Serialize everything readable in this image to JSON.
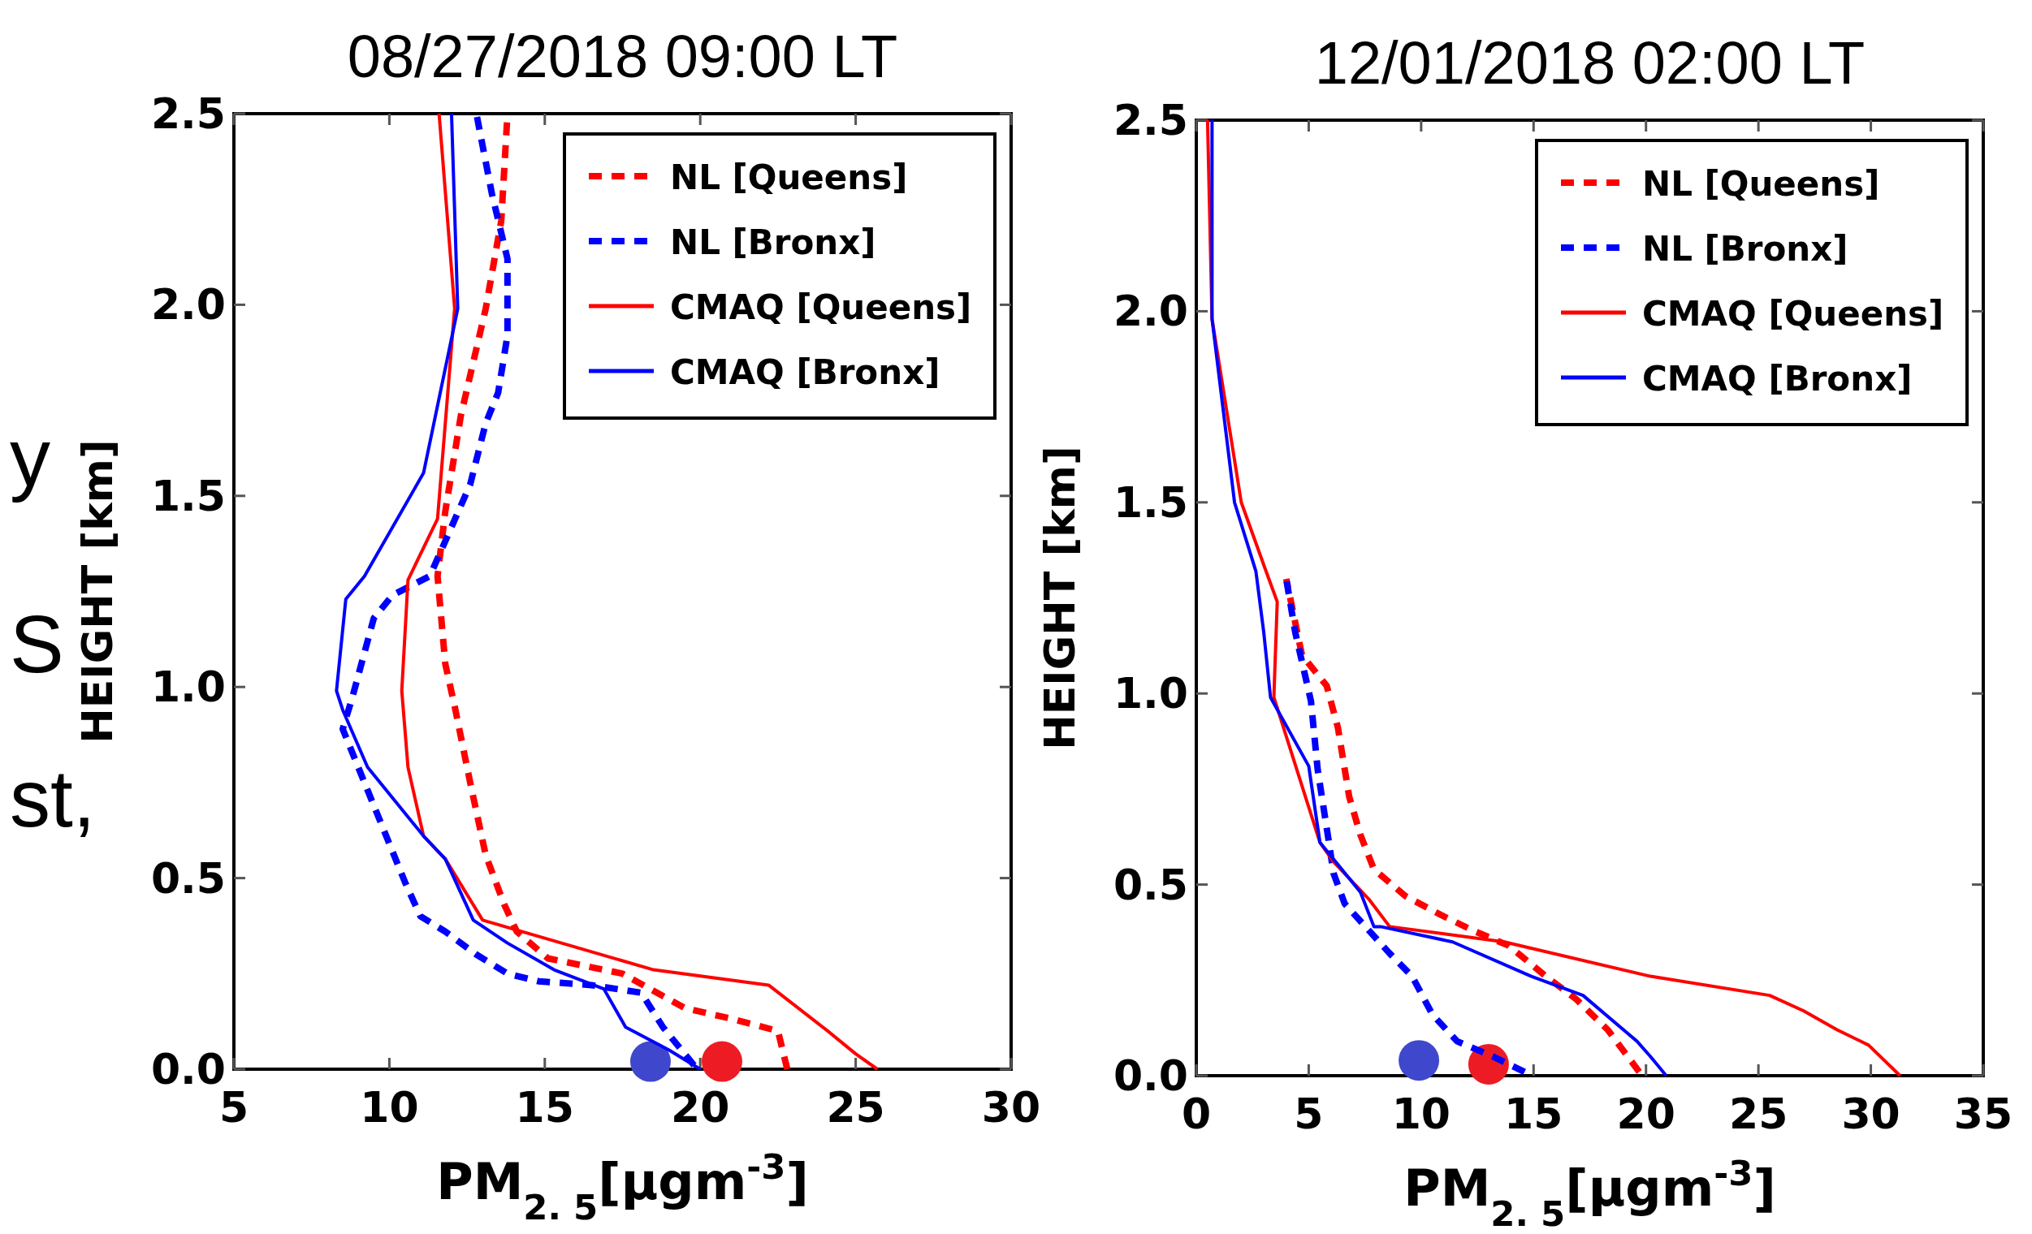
{
  "chart_data": [
    {
      "type": "line",
      "title": "08/27/2018 09:00 LT",
      "xlabel": "PM$_{2. 5}$[μgm$^{-3}$]",
      "ylabel": "HEIGHT [km]",
      "xlim": [
        5,
        30
      ],
      "xticks": [
        5,
        10,
        15,
        20,
        25,
        30
      ],
      "ylim": [
        0,
        2.5
      ],
      "yticks": [
        {
          "value": 0,
          "label": "0.0"
        },
        {
          "value": 0.5,
          "label": "0.5"
        },
        {
          "value": 1,
          "label": "1.0"
        },
        {
          "value": 1.5,
          "label": "1.5"
        },
        {
          "value": 2,
          "label": "2.0"
        },
        {
          "value": 2.5,
          "label": "2.5"
        }
      ],
      "grid": false,
      "legend": "top right",
      "annotations": [
        "y",
        "S",
        "st,"
      ],
      "series": [
        {
          "name": "NL [Queens]",
          "color": "#ff0000",
          "line_style": "dashed",
          "x": [
            22.8,
            22.5,
            21.1,
            19.5,
            17.5,
            15.1,
            14.1,
            13.7,
            13.1,
            12.6,
            12.1,
            11.8,
            11.55,
            11.8,
            12.3,
            13.1,
            13.6,
            13.8
          ],
          "values": [
            0,
            0.1,
            0.13,
            0.16,
            0.25,
            0.29,
            0.36,
            0.43,
            0.56,
            0.75,
            0.95,
            1.06,
            1.29,
            1.46,
            1.71,
            1.99,
            2.22,
            2.5
          ]
        },
        {
          "name": "NL [Bronx]",
          "color": "#0000ff",
          "line_style": "dashed",
          "x": [
            19.8,
            18.8,
            18.1,
            16.5,
            14.8,
            13.8,
            12.8,
            11.8,
            11.0,
            10.5,
            9.8,
            9.0,
            8.5,
            8.8,
            9.5,
            10.1,
            11.3,
            11.9,
            12.6,
            13.1,
            13.5,
            13.8,
            13.8,
            13.3,
            12.8
          ],
          "values": [
            0.01,
            0.11,
            0.2,
            0.22,
            0.23,
            0.25,
            0.3,
            0.36,
            0.4,
            0.49,
            0.63,
            0.79,
            0.89,
            0.97,
            1.18,
            1.24,
            1.29,
            1.4,
            1.53,
            1.69,
            1.77,
            1.92,
            2.12,
            2.29,
            2.5
          ]
        },
        {
          "name": "CMAQ [Queens]",
          "color": "#ff0000",
          "line_style": "solid",
          "x": [
            25.7,
            25.0,
            24.1,
            22.2,
            18.5,
            13.0,
            11.8,
            11.1,
            10.6,
            10.4,
            10.6,
            11.55,
            12.1,
            11.6
          ],
          "values": [
            0,
            0.04,
            0.1,
            0.22,
            0.26,
            0.39,
            0.55,
            0.61,
            0.79,
            0.99,
            1.28,
            1.44,
            1.99,
            2.5
          ]
        },
        {
          "name": "CMAQ [Bronx]",
          "color": "#0000ff",
          "line_style": "solid",
          "x": [
            20.0,
            19.0,
            17.6,
            16.9,
            15.3,
            13.8,
            12.7,
            11.8,
            11.1,
            9.3,
            8.5,
            8.3,
            8.6,
            9.2,
            11.1,
            12.2,
            12.0
          ],
          "values": [
            0,
            0.05,
            0.11,
            0.21,
            0.26,
            0.33,
            0.39,
            0.55,
            0.61,
            0.79,
            0.94,
            0.99,
            1.23,
            1.29,
            1.56,
            1.99,
            2.5
          ]
        },
        {
          "type": "scatter",
          "marker": "circle",
          "color": "#3f48cc",
          "x": [
            18.4
          ],
          "values": [
            0.02
          ]
        },
        {
          "type": "scatter",
          "marker": "circle",
          "color": "#ed1c24",
          "x": [
            20.7
          ],
          "values": [
            0.02
          ]
        }
      ]
    },
    {
      "type": "line",
      "title": "12/01/2018 02:00 LT",
      "xlabel": "PM$_{2. 5}$[μgm$^{-3}$]",
      "ylabel": "HEIGHT [km]",
      "xlim": [
        0,
        35
      ],
      "xticks": [
        0,
        5,
        10,
        15,
        20,
        25,
        30,
        35
      ],
      "ylim": [
        0,
        2.5
      ],
      "yticks": [
        {
          "value": 0,
          "label": "0.0"
        },
        {
          "value": 0.5,
          "label": "0.5"
        },
        {
          "value": 1,
          "label": "1.0"
        },
        {
          "value": 1.5,
          "label": "1.5"
        },
        {
          "value": 2,
          "label": "2.0"
        },
        {
          "value": 2.5,
          "label": "2.5"
        }
      ],
      "grid": false,
      "legend": "top right",
      "series": [
        {
          "name": "NL [Queens]",
          "color": "#ff0000",
          "line_style": "dashed",
          "x": [
            19.7,
            18.3,
            16.9,
            15.55,
            13.9,
            12.3,
            10.9,
            9.3,
            7.9,
            7.3,
            6.8,
            6.3,
            5.8,
            4.7,
            4.0
          ],
          "values": [
            0.01,
            0.12,
            0.2,
            0.26,
            0.34,
            0.38,
            0.42,
            0.47,
            0.54,
            0.63,
            0.73,
            0.91,
            1.02,
            1.1,
            1.3
          ]
        },
        {
          "name": "NL [Bronx]",
          "color": "#0000ff",
          "line_style": "dashed",
          "x": [
            14.6,
            13.2,
            11.6,
            10.5,
            9.6,
            8.6,
            6.6,
            6.1,
            5.9,
            5.4,
            5.1,
            4.4,
            4.0
          ],
          "values": [
            0.01,
            0.05,
            0.09,
            0.16,
            0.26,
            0.32,
            0.45,
            0.53,
            0.61,
            0.8,
            0.98,
            1.16,
            1.3
          ]
        },
        {
          "name": "CMAQ [Queens]",
          "color": "#ff0000",
          "line_style": "solid",
          "x": [
            31.3,
            29.9,
            28.5,
            27.0,
            25.5,
            20.2,
            13.7,
            8.6,
            7.7,
            6.1,
            5.5,
            3.45,
            3.6,
            3.1,
            2.0,
            0.7,
            0.5
          ],
          "values": [
            0,
            0.08,
            0.12,
            0.17,
            0.21,
            0.26,
            0.35,
            0.39,
            0.46,
            0.56,
            0.61,
            0.99,
            1.24,
            1.32,
            1.5,
            1.98,
            2.5
          ]
        },
        {
          "name": "CMAQ [Bronx]",
          "color": "#0000ff",
          "line_style": "solid",
          "x": [
            20.9,
            20.2,
            19.6,
            17.2,
            14.9,
            11.4,
            8.2,
            7.9,
            7.3,
            5.5,
            5.0,
            3.3,
            3.0,
            2.65,
            1.7,
            0.7,
            0.7
          ],
          "values": [
            0,
            0.05,
            0.09,
            0.21,
            0.26,
            0.35,
            0.39,
            0.39,
            0.48,
            0.61,
            0.81,
            0.99,
            1.16,
            1.32,
            1.5,
            1.98,
            2.5
          ]
        },
        {
          "type": "scatter",
          "marker": "circle",
          "color": "#3f48cc",
          "x": [
            9.9
          ],
          "values": [
            0.04
          ]
        },
        {
          "type": "scatter",
          "marker": "circle",
          "color": "#ed1c24",
          "x": [
            13.0
          ],
          "values": [
            0.03
          ]
        }
      ]
    }
  ]
}
